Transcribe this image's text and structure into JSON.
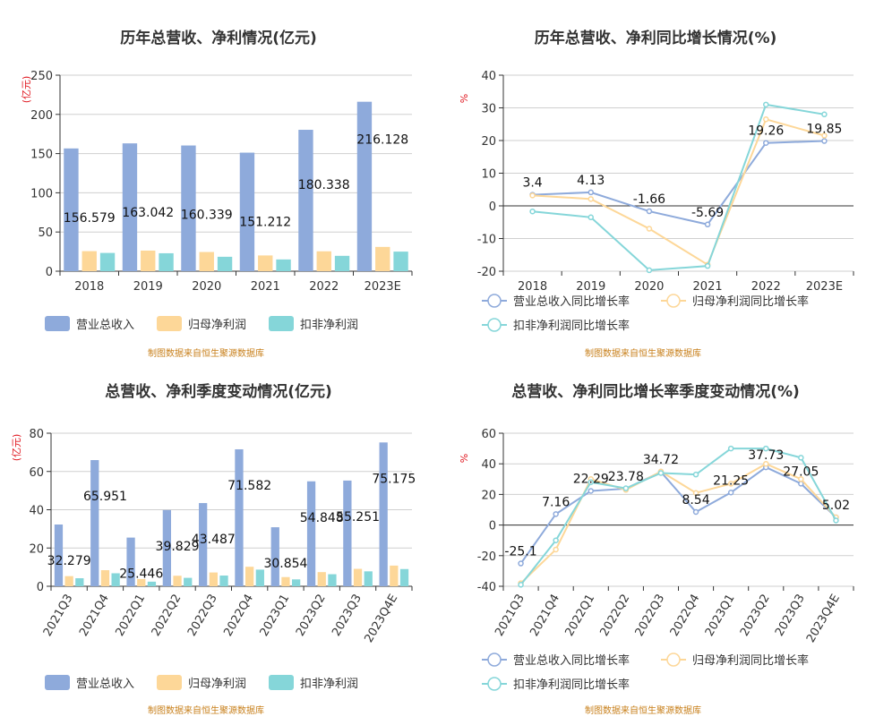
{
  "colors": {
    "revenue": "#8eaadb",
    "net_profit": "#fdd798",
    "deducted_profit": "#85d6d9",
    "grid": "#cfcfcf",
    "axis": "#333333",
    "unit": "#e0161e",
    "source": "#c8801c"
  },
  "chart_data": [
    {
      "type": "bar",
      "title": "历年总营收、净利情况(亿元)",
      "ylabel": "(亿元)",
      "ylim": [
        0,
        250
      ],
      "yticks": [
        0,
        50,
        100,
        150,
        200,
        250
      ],
      "categories": [
        "2018",
        "2019",
        "2020",
        "2021",
        "2022",
        "2023E"
      ],
      "series": [
        {
          "name": "营业总收入",
          "values": [
            156.579,
            163.042,
            160.339,
            151.212,
            180.338,
            216.128
          ]
        },
        {
          "name": "归母净利润",
          "values": [
            25.6,
            26.3,
            24.5,
            20.1,
            25.4,
            31.0
          ]
        },
        {
          "name": "扣非净利润",
          "values": [
            23.3,
            22.9,
            18.4,
            15.0,
            19.6,
            25.0
          ]
        }
      ],
      "data_labels": [
        "156.579",
        "163.042",
        "160.339",
        "151.212",
        "180.338",
        "216.128"
      ],
      "source": "制图数据来自恒生聚源数据库"
    },
    {
      "type": "line",
      "title": "历年总营收、净利同比增长情况(%)",
      "ylabel": "%",
      "ylim": [
        -20,
        40
      ],
      "yticks": [
        -20,
        -10,
        0,
        10,
        20,
        30,
        40
      ],
      "categories": [
        "2018",
        "2019",
        "2020",
        "2021",
        "2022",
        "2023E"
      ],
      "series": [
        {
          "name": "营业总收入同比增长率",
          "values": [
            3.4,
            4.13,
            -1.66,
            -5.69,
            19.26,
            19.85
          ]
        },
        {
          "name": "归母净利润同比增长率",
          "values": [
            3.2,
            2.1,
            -7.0,
            -18.0,
            26.5,
            21.5
          ]
        },
        {
          "name": "扣非净利润同比增长率",
          "values": [
            -1.7,
            -3.5,
            -19.7,
            -18.4,
            31.0,
            28.0
          ]
        }
      ],
      "data_labels": [
        "3.4",
        "4.13",
        "-1.66",
        "-5.69",
        "19.26",
        "19.85"
      ],
      "source": "制图数据来自恒生聚源数据库"
    },
    {
      "type": "bar",
      "title": "总营收、净利季度变动情况(亿元)",
      "ylabel": "(亿元)",
      "ylim": [
        0,
        80
      ],
      "yticks": [
        0,
        20,
        40,
        60,
        80
      ],
      "categories": [
        "2021Q3",
        "2021Q4",
        "2022Q1",
        "2022Q2",
        "2022Q3",
        "2022Q4",
        "2023Q1",
        "2023Q2",
        "2023Q3",
        "2023Q4E"
      ],
      "series": [
        {
          "name": "营业总收入",
          "values": [
            32.279,
            65.951,
            25.446,
            39.829,
            43.487,
            71.582,
            30.854,
            54.848,
            55.251,
            75.175
          ]
        },
        {
          "name": "归母净利润",
          "values": [
            5.3,
            8.4,
            3.8,
            5.5,
            7.2,
            10.2,
            4.8,
            7.4,
            9.1,
            10.8
          ]
        },
        {
          "name": "扣非净利润",
          "values": [
            4.2,
            6.8,
            2.4,
            4.4,
            5.6,
            8.7,
            3.6,
            6.3,
            7.8,
            9.0
          ]
        }
      ],
      "data_labels": [
        "32.279",
        "65.951",
        "25.446",
        "39.829",
        "43.487",
        "71.582",
        "30.854",
        "54.848",
        "55.251",
        "75.175"
      ],
      "source": "制图数据来自恒生聚源数据库"
    },
    {
      "type": "line",
      "title": "总营收、净利同比增长率季度变动情况(%)",
      "ylabel": "%",
      "ylim": [
        -40,
        60
      ],
      "yticks": [
        -40,
        -20,
        0,
        20,
        40,
        60
      ],
      "categories": [
        "2021Q3",
        "2021Q4",
        "2022Q1",
        "2022Q2",
        "2022Q3",
        "2022Q4",
        "2023Q1",
        "2023Q2",
        "2023Q3",
        "2023Q4E"
      ],
      "series": [
        {
          "name": "营业总收入同比增长率",
          "values": [
            -25.1,
            7.16,
            22.29,
            23.78,
            34.72,
            8.54,
            21.25,
            37.73,
            27.05,
            5.02
          ]
        },
        {
          "name": "归母净利润同比增长率",
          "values": [
            -38.0,
            -16.0,
            30.0,
            23.0,
            35.0,
            21.0,
            27.0,
            40.0,
            30.0,
            5.0
          ]
        },
        {
          "name": "扣非净利润同比增长率",
          "values": [
            -39.0,
            -10.0,
            28.0,
            24.0,
            34.0,
            33.0,
            50.0,
            50.0,
            44.0,
            3.0
          ]
        }
      ],
      "data_labels": [
        "-25.1",
        "7.16",
        "22.29",
        "23.78",
        "34.72",
        "8.54",
        "21.25",
        "37.73",
        "27.05",
        "5.02"
      ],
      "source": "制图数据来自恒生聚源数据库"
    }
  ]
}
